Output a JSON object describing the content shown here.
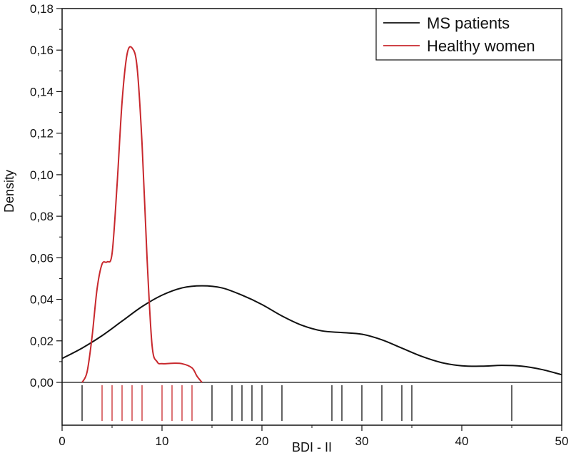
{
  "chart_data": {
    "type": "line",
    "title": "",
    "xlabel": "BDI - II",
    "ylabel": "Density",
    "xlim": [
      0,
      50
    ],
    "ylim": [
      0,
      0.18
    ],
    "x_ticks": [
      0,
      10,
      20,
      30,
      40,
      50
    ],
    "x_tick_labels": [
      "0",
      "10",
      "20",
      "30",
      "40",
      "50"
    ],
    "y_ticks": [
      0,
      0.02,
      0.04,
      0.06,
      0.08,
      0.1,
      0.12,
      0.14,
      0.16,
      0.18
    ],
    "y_tick_labels": [
      "0,00",
      "0,02",
      "0,04",
      "0,06",
      "0,08",
      "0,10",
      "0,12",
      "0,14",
      "0,16",
      "0,18"
    ],
    "legend_position": "top-right",
    "grid": false,
    "series": [
      {
        "name": "MS patients",
        "color": "#111111",
        "x": [
          0,
          2,
          4,
          6,
          8,
          10,
          12,
          14,
          16,
          18,
          20,
          22,
          24,
          26,
          28,
          30,
          32,
          34,
          36,
          38,
          40,
          42,
          44,
          46,
          48,
          50
        ],
        "y": [
          0.0115,
          0.0165,
          0.0225,
          0.0295,
          0.0365,
          0.042,
          0.0455,
          0.0465,
          0.0455,
          0.042,
          0.0375,
          0.032,
          0.0275,
          0.0248,
          0.024,
          0.0232,
          0.0205,
          0.0165,
          0.0125,
          0.0095,
          0.008,
          0.0078,
          0.0082,
          0.0078,
          0.0062,
          0.0037
        ],
        "rug": [
          2,
          15,
          17,
          18,
          19,
          20,
          22,
          27,
          28,
          30,
          32,
          34,
          35,
          45
        ]
      },
      {
        "name": "Healthy women",
        "color": "#c8282d",
        "x": [
          2.0,
          2.5,
          3.0,
          3.5,
          4.0,
          4.5,
          5.0,
          5.5,
          6.0,
          6.5,
          7.0,
          7.5,
          8.0,
          8.5,
          9.0,
          9.5,
          10.0,
          11.0,
          12.0,
          13.0,
          13.5,
          14.0
        ],
        "y": [
          0.0,
          0.005,
          0.022,
          0.045,
          0.057,
          0.058,
          0.062,
          0.095,
          0.135,
          0.158,
          0.161,
          0.152,
          0.115,
          0.06,
          0.018,
          0.01,
          0.009,
          0.0092,
          0.009,
          0.007,
          0.003,
          0.0
        ],
        "rug": [
          4,
          5,
          6,
          7,
          8,
          10,
          11,
          12,
          13
        ]
      }
    ]
  }
}
